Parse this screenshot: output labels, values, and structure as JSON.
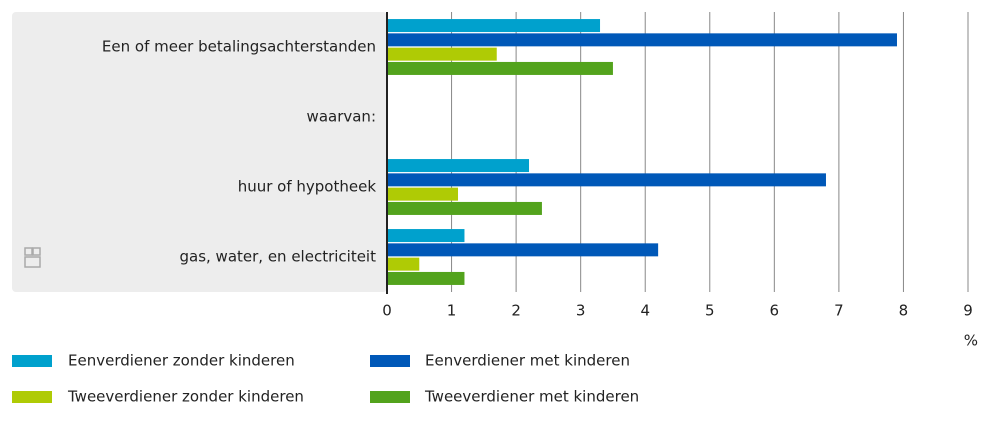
{
  "chart_data": {
    "type": "hbar",
    "categories": [
      "Een of meer betalingsachterstanden",
      "waarvan:",
      "huur of hypotheek",
      "gas, water, en electriciteit"
    ],
    "series": [
      {
        "name": "Eenverdiener zonder kinderen",
        "color": "#00a1cd",
        "values": [
          3.3,
          null,
          2.2,
          1.2
        ]
      },
      {
        "name": "Eenverdiener met kinderen",
        "color": "#0058b8",
        "values": [
          7.9,
          null,
          6.8,
          4.2
        ]
      },
      {
        "name": "Tweeverdiener zonder kinderen",
        "color": "#afcb05",
        "values": [
          1.7,
          null,
          1.1,
          0.5
        ]
      },
      {
        "name": "Tweeverdiener met kinderen",
        "color": "#53a31d",
        "values": [
          3.5,
          null,
          2.4,
          1.2
        ]
      }
    ],
    "xlabel": "%",
    "xlim": [
      0,
      9
    ],
    "xticks": [
      0,
      1,
      2,
      3,
      4,
      5,
      6,
      7,
      8,
      9
    ],
    "grid": true
  }
}
